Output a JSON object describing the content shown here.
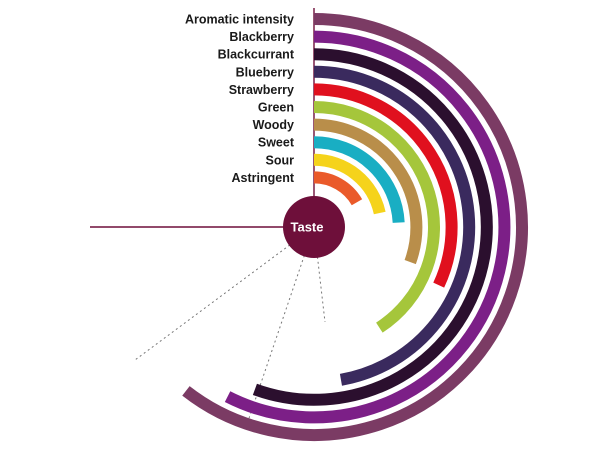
{
  "chart_data": {
    "type": "radial-bar",
    "center_label": "Taste",
    "categories": [
      "Aromatic intensity",
      "Blackberry",
      "Blackcurrant",
      "Blueberry",
      "Strawberry",
      "Green",
      "Woody",
      "Sweet",
      "Sour",
      "Astringent"
    ],
    "values": [
      218,
      207,
      200,
      170,
      115,
      147,
      110,
      87,
      78,
      60
    ],
    "value_unit": "degrees of arc from 12 o'clock, clockwise",
    "colors": [
      "#7b3b64",
      "#7c1f87",
      "#2b0f2e",
      "#3a2a5e",
      "#e0101e",
      "#a5c63b",
      "#b98e4a",
      "#19aec3",
      "#f5d31b",
      "#ea5a2a"
    ],
    "center_color": "#6e0f3a",
    "guide_color": "#6e0f3a"
  }
}
